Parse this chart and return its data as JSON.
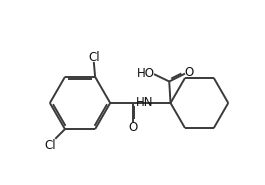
{
  "background": "#ffffff",
  "bond_color": "#3a3a3a",
  "text_color": "#111111",
  "line_width": 1.4,
  "fig_width": 2.65,
  "fig_height": 1.85,
  "dpi": 100,
  "xlim": [
    0,
    10
  ],
  "ylim": [
    0,
    7
  ]
}
